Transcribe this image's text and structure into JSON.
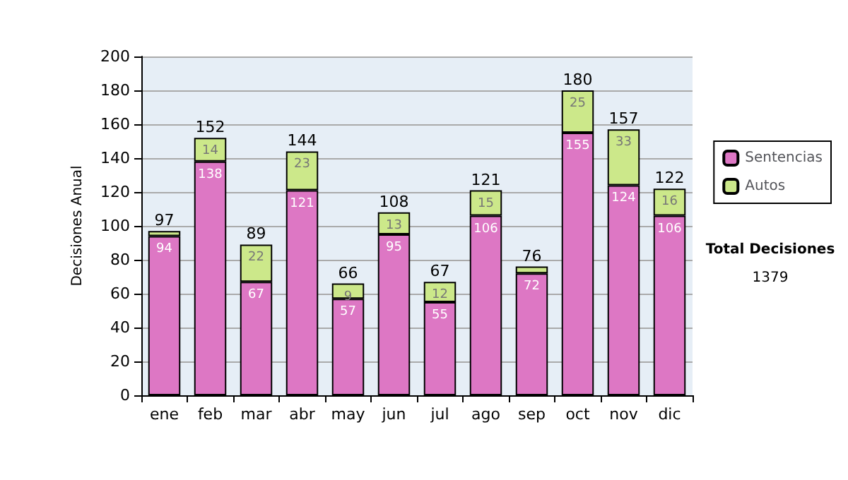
{
  "chart_data": {
    "type": "bar",
    "stacked": true,
    "ylabel": "Decisiones Anual",
    "categories": [
      "ene",
      "feb",
      "mar",
      "abr",
      "may",
      "jun",
      "jul",
      "ago",
      "sep",
      "oct",
      "nov",
      "dic"
    ],
    "series": [
      {
        "name": "Sentencias",
        "color": "#dd77c4",
        "values": [
          94,
          138,
          67,
          121,
          57,
          95,
          55,
          106,
          72,
          155,
          124,
          106
        ],
        "value_labels": [
          "94",
          "138",
          "67",
          "121",
          "57",
          "95",
          "55",
          "106",
          "72",
          "155",
          "124",
          "106"
        ]
      },
      {
        "name": "Autos",
        "color": "#cce88a",
        "values": [
          3,
          14,
          22,
          23,
          9,
          13,
          12,
          15,
          4,
          25,
          33,
          16
        ],
        "value_labels": [
          null,
          "14",
          "22",
          "23",
          "9",
          "13",
          "12",
          "15",
          null,
          "25",
          "33",
          "16"
        ]
      }
    ],
    "totals": [
      "97",
      "152",
      "89",
      "144",
      "66",
      "108",
      "67",
      "121",
      "76",
      "180",
      "157",
      "122"
    ],
    "ylim": [
      0,
      200
    ],
    "yticks": [
      0,
      20,
      40,
      60,
      80,
      100,
      120,
      140,
      160,
      180,
      200
    ],
    "grid": "y",
    "legend": "right",
    "annotations": [
      "Total Decisiones",
      "1379"
    ]
  }
}
